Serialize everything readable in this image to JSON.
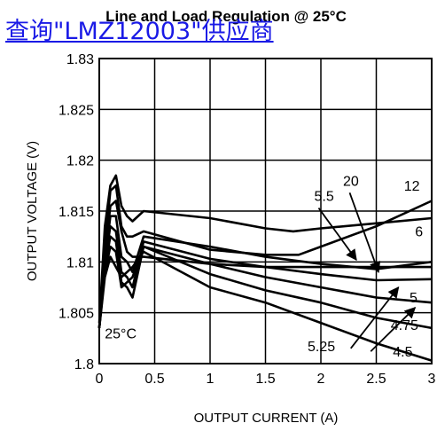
{
  "link": {
    "text": "查询\"LMZ12003\"供应商"
  },
  "chart_data": {
    "type": "line",
    "title": "Line and Load Regulation @ 25°C",
    "xlabel": "OUTPUT CURRENT (A)",
    "ylabel": "OUTPUT VOLTAGE (V)",
    "xlim": [
      0,
      3
    ],
    "ylim": [
      1.8,
      1.83
    ],
    "x_ticks": [
      "0",
      "0.5",
      "1",
      "1.5",
      "2",
      "2.5",
      "3"
    ],
    "y_ticks": [
      "1.8",
      "1.805",
      "1.81",
      "1.815",
      "1.82",
      "1.825",
      "1.83"
    ],
    "x_tick_values": [
      0,
      0.5,
      1,
      1.5,
      2,
      2.5,
      3
    ],
    "y_tick_values": [
      1.8,
      1.805,
      1.81,
      1.815,
      1.82,
      1.825,
      1.83
    ],
    "grid": true,
    "annotations": [
      {
        "text": "25°C",
        "x": 0.05,
        "y": 1.8025
      },
      {
        "text": "20",
        "x": 2.2,
        "y": 1.8175
      },
      {
        "text": "12",
        "x": 2.75,
        "y": 1.817
      },
      {
        "text": "5.5",
        "x": 1.94,
        "y": 1.816
      },
      {
        "text": "6",
        "x": 2.85,
        "y": 1.8125
      },
      {
        "text": "5",
        "x": 2.8,
        "y": 1.806
      },
      {
        "text": "4.75",
        "x": 2.63,
        "y": 1.8033
      },
      {
        "text": "5.25",
        "x": 1.88,
        "y": 1.8012
      },
      {
        "text": "4.5",
        "x": 2.65,
        "y": 1.8007
      }
    ],
    "series": [
      {
        "name": "12",
        "x": [
          0,
          0.05,
          0.1,
          0.15,
          0.2,
          0.25,
          0.3,
          0.4,
          1.0,
          1.5,
          1.8,
          2.0,
          2.5,
          3.0
        ],
        "y": [
          1.8035,
          1.8115,
          1.817,
          1.8175,
          1.8135,
          1.8125,
          1.8125,
          1.813,
          1.8112,
          1.8107,
          1.8107,
          1.8115,
          1.8135,
          1.816
        ]
      },
      {
        "name": "20",
        "x": [
          0,
          0.05,
          0.1,
          0.15,
          0.2,
          0.25,
          0.3,
          0.4,
          1.0,
          1.5,
          1.75,
          2.0,
          2.5,
          3.0
        ],
        "y": [
          1.804,
          1.8135,
          1.8175,
          1.8185,
          1.8155,
          1.8145,
          1.814,
          1.815,
          1.8143,
          1.8133,
          1.813,
          1.8133,
          1.8138,
          1.8143
        ]
      },
      {
        "name": "6",
        "x": [
          0,
          0.05,
          0.1,
          0.15,
          0.2,
          0.25,
          0.3,
          0.4,
          1.0,
          1.5,
          2.0,
          2.5,
          3.0
        ],
        "y": [
          1.8035,
          1.8105,
          1.8155,
          1.816,
          1.813,
          1.811,
          1.8105,
          1.8105,
          1.8098,
          1.8095,
          1.8095,
          1.8095,
          1.8095
        ]
      },
      {
        "name": "5.5",
        "x": [
          0,
          0.05,
          0.1,
          0.15,
          0.2,
          0.25,
          0.3,
          0.4,
          1.0,
          1.5,
          2.0,
          2.5,
          3.0
        ],
        "y": [
          1.8035,
          1.81,
          1.8145,
          1.8145,
          1.8105,
          1.81,
          1.809,
          1.8125,
          1.8115,
          1.8105,
          1.8098,
          1.8093,
          1.81
        ]
      },
      {
        "name": "5.25",
        "x": [
          0,
          0.05,
          0.1,
          0.15,
          0.2,
          0.25,
          0.3,
          0.4,
          1.0,
          1.5,
          2.0,
          2.5,
          3.0
        ],
        "y": [
          1.8035,
          1.81,
          1.8135,
          1.813,
          1.809,
          1.8085,
          1.8075,
          1.812,
          1.8103,
          1.8095,
          1.8088,
          1.8082,
          1.8083
        ]
      },
      {
        "name": "5",
        "x": [
          0,
          0.05,
          0.1,
          0.15,
          0.2,
          0.25,
          0.3,
          0.4,
          1.0,
          1.5,
          2.0,
          2.5,
          3.0
        ],
        "y": [
          1.8035,
          1.8095,
          1.8125,
          1.812,
          1.808,
          1.8075,
          1.8065,
          1.8115,
          1.8098,
          1.8085,
          1.8075,
          1.8065,
          1.806
        ]
      },
      {
        "name": "4.75",
        "x": [
          0,
          0.05,
          0.1,
          0.15,
          0.2,
          0.25,
          0.3,
          0.4,
          1.0,
          1.5,
          2.0,
          2.5,
          3.0
        ],
        "y": [
          1.8035,
          1.809,
          1.8115,
          1.811,
          1.8075,
          1.808,
          1.8085,
          1.8115,
          1.8088,
          1.8072,
          1.806,
          1.8045,
          1.8035
        ]
      },
      {
        "name": "4.5",
        "x": [
          0,
          0.05,
          0.1,
          0.15,
          0.2,
          0.25,
          0.3,
          0.4,
          1.0,
          1.5,
          2.0,
          2.5,
          3.0
        ],
        "y": [
          1.8035,
          1.8085,
          1.8105,
          1.8095,
          1.8085,
          1.809,
          1.8095,
          1.811,
          1.8075,
          1.806,
          1.804,
          1.802,
          1.8003
        ]
      }
    ]
  }
}
